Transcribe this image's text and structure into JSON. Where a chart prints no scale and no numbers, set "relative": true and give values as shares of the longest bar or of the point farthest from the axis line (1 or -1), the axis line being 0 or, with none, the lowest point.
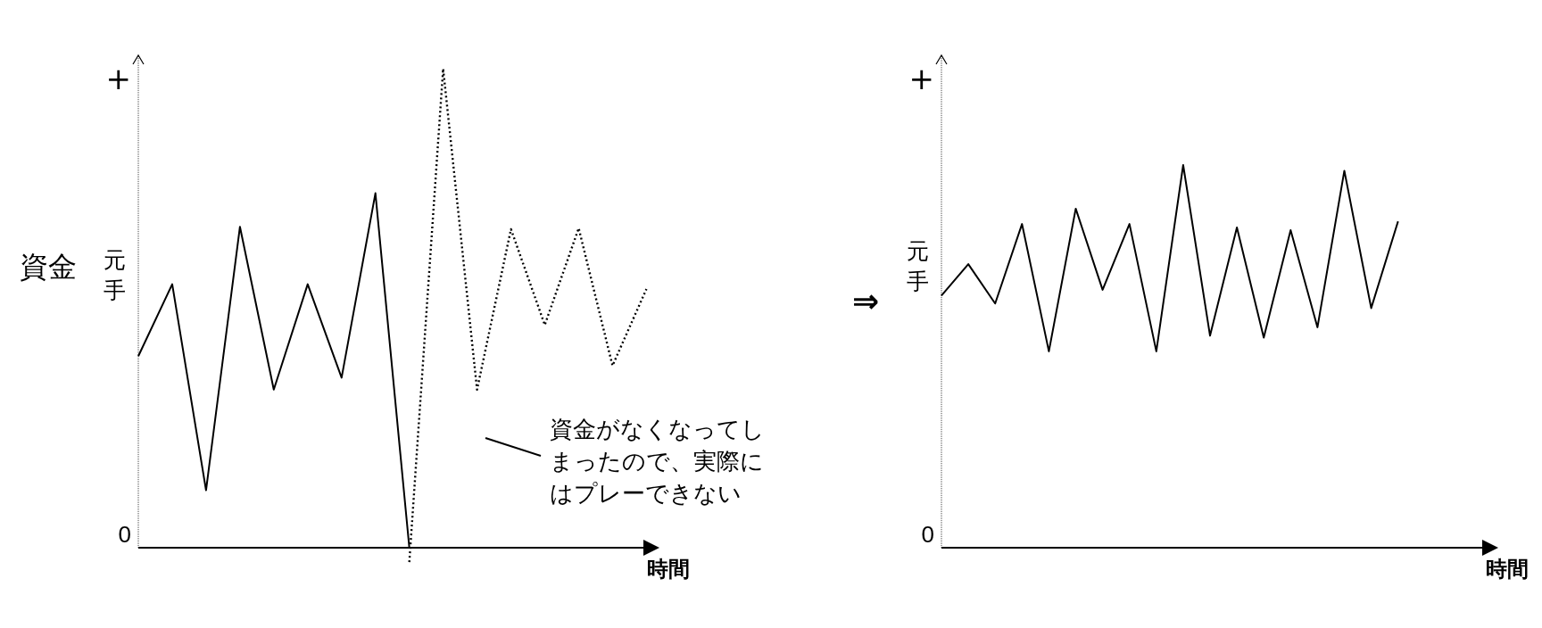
{
  "chart_data": [
    {
      "type": "line",
      "relative": true,
      "ylabel": "資金",
      "xlabel": "時間",
      "categories": [
        null,
        null,
        null,
        null,
        null,
        null,
        null,
        null,
        null,
        null,
        null,
        null,
        null,
        null,
        null,
        null
      ],
      "series": [
        {
          "color": "#000000",
          "line_style": "solid",
          "values": [
            0.4,
            0.55,
            0.12,
            0.67,
            0.33,
            0.55,
            0.355,
            0.74,
            0.0,
            null,
            null,
            null,
            null,
            null,
            null,
            null
          ]
        },
        {
          "color": "#000000",
          "line_style": "dotted",
          "values": [
            null,
            null,
            null,
            null,
            null,
            null,
            null,
            null,
            -0.03,
            1.0,
            0.33,
            0.665,
            0.465,
            0.667,
            0.38,
            0.54
          ]
        }
      ],
      "annotations": [
        "+",
        "0",
        "元手",
        "資金がなくなってしまったので、実際にはプレーできない"
      ]
    },
    {
      "type": "line",
      "relative": true,
      "xlabel": "時間",
      "categories": [
        null,
        null,
        null,
        null,
        null,
        null,
        null,
        null,
        null,
        null,
        null,
        null,
        null,
        null,
        null,
        null,
        null,
        null
      ],
      "series": [
        {
          "color": "#000000",
          "line_style": "solid",
          "values": [
            0.659,
            0.741,
            0.638,
            0.846,
            0.513,
            0.886,
            0.674,
            0.846,
            0.513,
            1.0,
            0.554,
            0.837,
            0.549,
            0.83,
            0.576,
            0.985,
            0.626,
            0.853
          ]
        }
      ],
      "annotations": [
        "+",
        "⇒",
        "0",
        "元手"
      ]
    }
  ]
}
